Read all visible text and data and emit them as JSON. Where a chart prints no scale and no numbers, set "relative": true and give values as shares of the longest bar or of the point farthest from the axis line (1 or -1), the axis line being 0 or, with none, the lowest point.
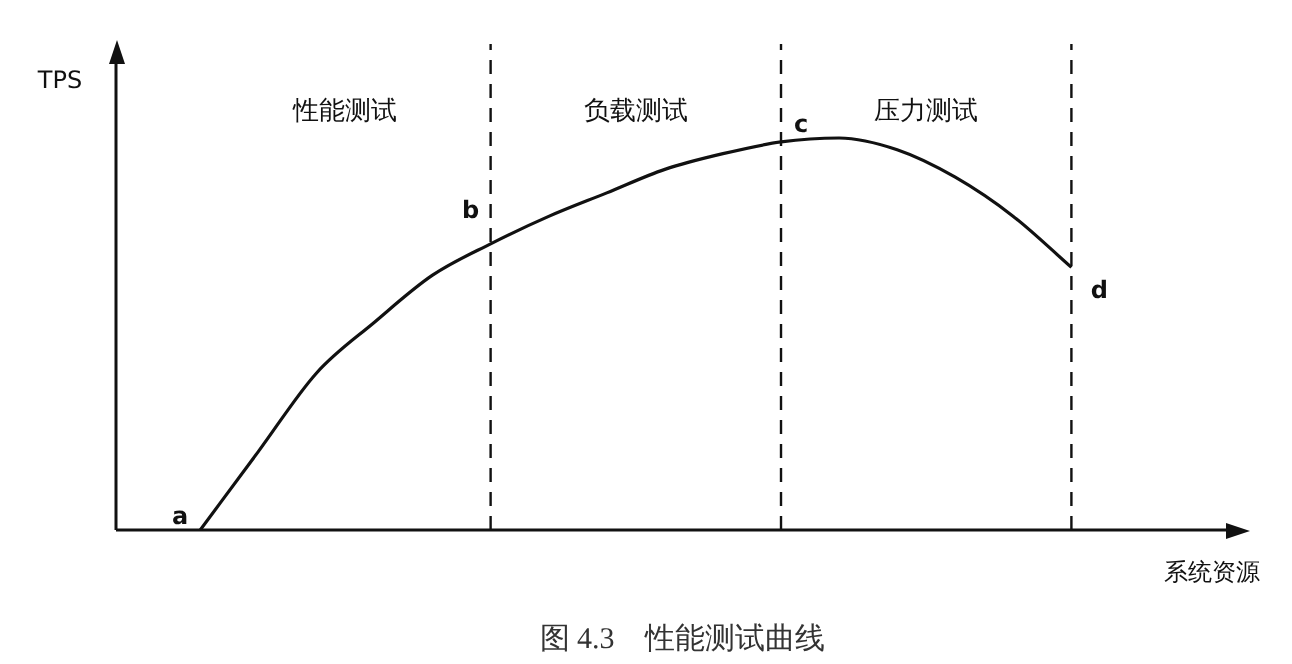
{
  "chart_data": {
    "type": "line",
    "relative": true,
    "title": "图 4.3　性能测试曲线",
    "ylabel": "TPS",
    "xlabel": "系统资源",
    "categories": [
      "a",
      null,
      null,
      null,
      null,
      "b",
      null,
      null,
      null,
      null,
      "c",
      null,
      null,
      null,
      null,
      "d"
    ],
    "series": [
      {
        "color": "#111111",
        "values": [
          0,
          0.2,
          0.4,
          0.53,
          0.65,
          0.73,
          0.8,
          0.86,
          0.92,
          0.96,
          0.99,
          1,
          0.97,
          0.9,
          0.8,
          0.67
        ]
      }
    ],
    "ref_lines": [
      {
        "axis": "x",
        "value": "b",
        "line_style": "dashed",
        "color": "#111111"
      },
      {
        "axis": "x",
        "value": "c",
        "line_style": "dashed",
        "color": "#111111"
      },
      {
        "axis": "x",
        "value": "d",
        "line_style": "dashed",
        "color": "#111111"
      }
    ],
    "annotations": [
      "性能测试",
      "负载测试",
      "压力测试"
    ],
    "marker": "none",
    "line_style": "solid",
    "legend": false
  }
}
